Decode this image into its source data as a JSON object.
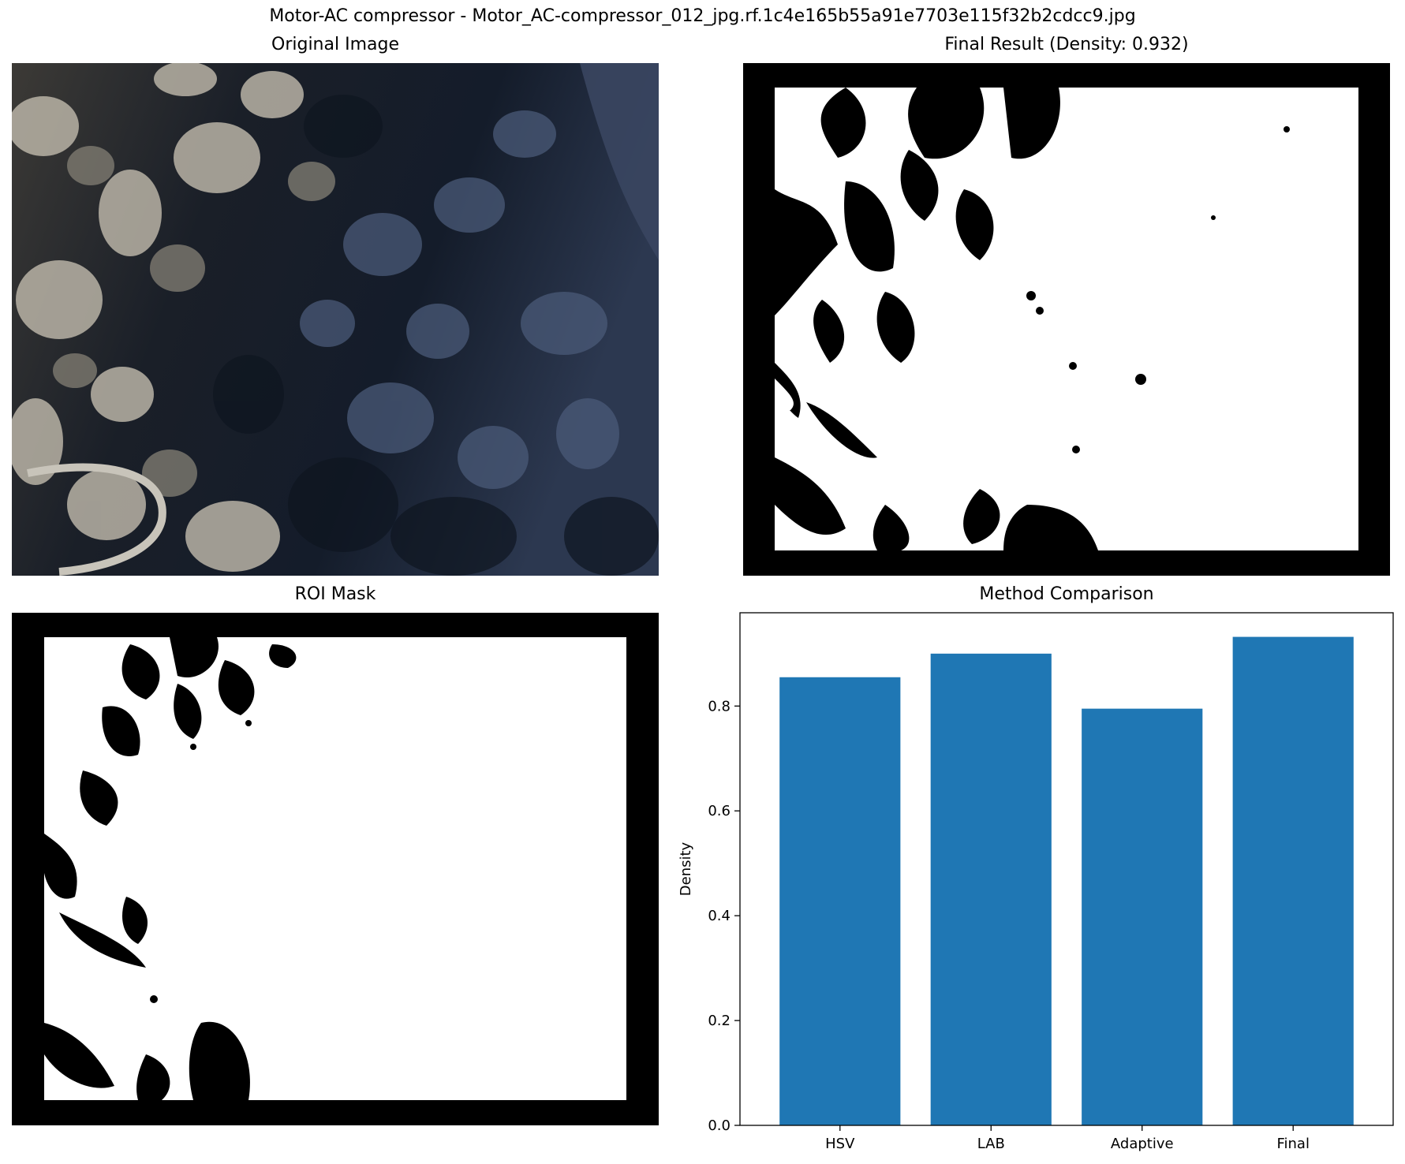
{
  "figure": {
    "suptitle": "Motor-AC compressor - Motor_AC-compressor_012_jpg.rf.1c4e165b55a91e7703e115f32b2cdcc9.jpg"
  },
  "panels": {
    "original": {
      "title": "Original Image"
    },
    "final": {
      "title": "Final Result (Density: 0.932)"
    },
    "roi": {
      "title": "ROI Mask"
    },
    "comparison": {
      "title": "Method Comparison"
    }
  },
  "colors": {
    "bar": "#1f77b4",
    "mask_fg": "#ffffff",
    "mask_bg": "#000000",
    "photo_dark": "#0e1520",
    "photo_metal": "#b9b3a6",
    "photo_blue": "#4a5a78"
  },
  "chart_data": {
    "type": "bar",
    "title": "Method Comparison",
    "categories": [
      "HSV",
      "LAB",
      "Adaptive",
      "Final"
    ],
    "values": [
      0.855,
      0.9,
      0.795,
      0.932
    ],
    "xlabel": "",
    "ylabel": "Density",
    "ylim": [
      0,
      0.978
    ],
    "yticks": [
      0.0,
      0.2,
      0.4,
      0.6,
      0.8
    ],
    "ytick_labels": [
      "0.0",
      "0.2",
      "0.4",
      "0.6",
      "0.8"
    ],
    "grid": false,
    "legend": "none"
  }
}
